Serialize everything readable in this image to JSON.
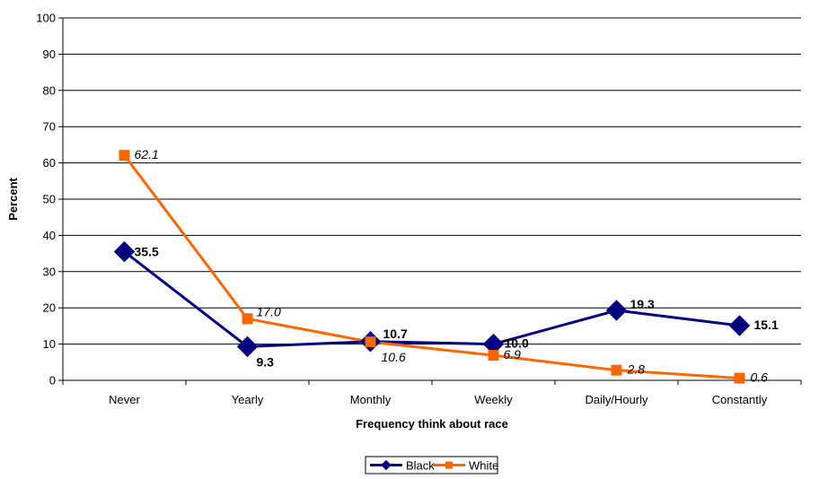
{
  "chart_data": {
    "type": "line",
    "title": "",
    "xlabel": "Frequency think about race",
    "ylabel": "Percent",
    "ylim": [
      0,
      100
    ],
    "yticks": [
      0,
      10,
      20,
      30,
      40,
      50,
      60,
      70,
      80,
      90,
      100
    ],
    "grid": "horizontal",
    "legend_position": "bottom-center",
    "categories": [
      "Never",
      "Yearly",
      "Monthly",
      "Weekly",
      "Daily/Hourly",
      "Constantly"
    ],
    "series": [
      {
        "name": "Black",
        "values": [
          35.5,
          9.3,
          10.7,
          10.0,
          19.3,
          15.1
        ],
        "labels": [
          "35.5",
          "9.3",
          "10.7",
          "10.0",
          "19.3",
          "15.1"
        ],
        "color": "#000080",
        "marker": "diamond",
        "label_style": "bold"
      },
      {
        "name": "White",
        "values": [
          62.1,
          17.0,
          10.6,
          6.9,
          2.8,
          0.6
        ],
        "labels": [
          "62.1",
          "17.0",
          "10.6",
          "6.9",
          "2.8",
          "0.6"
        ],
        "color": "#FF6600",
        "marker": "square",
        "label_style": "italic"
      }
    ]
  }
}
